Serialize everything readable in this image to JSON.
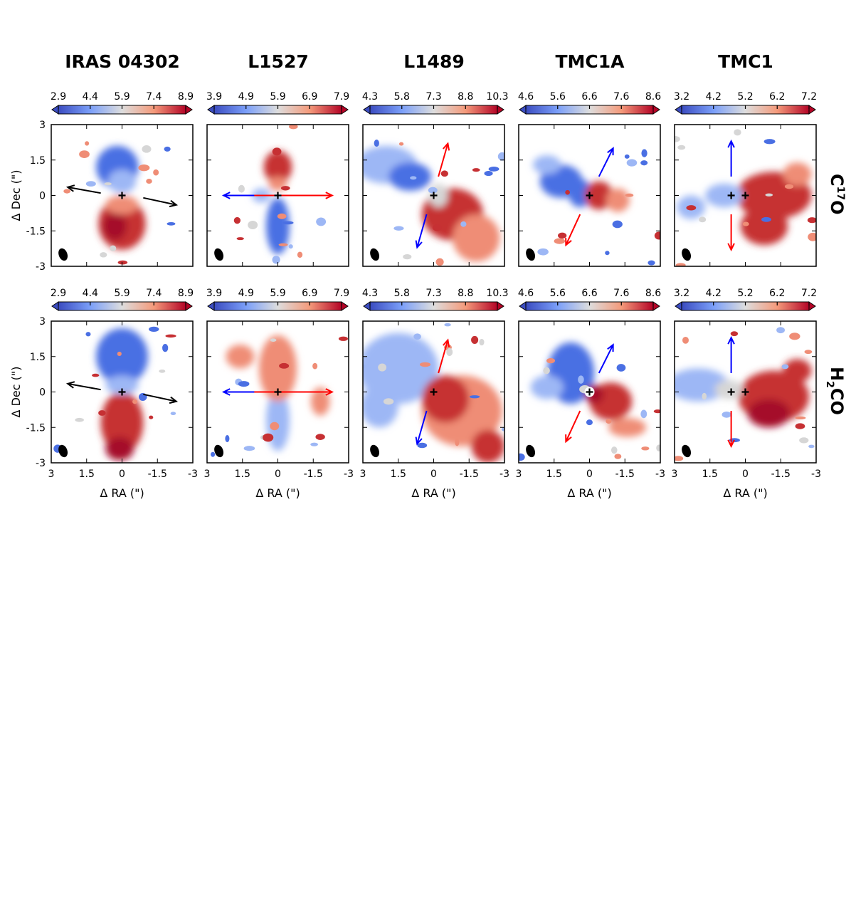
{
  "figure": {
    "columns": [
      "IRAS 04302",
      "L1527",
      "L1489",
      "TMC1A",
      "TMC1"
    ],
    "rows": [
      {
        "label_main": "C",
        "label_sup": "17",
        "label_end": "O"
      },
      {
        "label_main": "H",
        "label_sub": "2",
        "label_end": "CO"
      }
    ],
    "xlabel": "Δ RA (\")",
    "ylabel": "Δ Dec (\")",
    "colorscale": {
      "low": "#3b4cc0",
      "mid": "#dddddd",
      "high": "#b40426"
    }
  },
  "chart_data": [
    {
      "type": "heatmap",
      "source": "IRAS 04302",
      "tracer": "C17O",
      "colorbar_ticks": [
        "2.9",
        "4.4",
        "5.9",
        "7.4",
        "8.9"
      ],
      "colorbar_range": [
        2.9,
        8.9
      ],
      "xlim": [
        3,
        -3
      ],
      "ylim": [
        -3,
        3
      ],
      "xticks": [
        "3",
        "1.5",
        "0",
        "-1.5",
        "-3"
      ],
      "yticks": [
        "3",
        "1.5",
        "0",
        "-1.5",
        "-3"
      ],
      "blue_lobe": "north",
      "red_lobe": "south",
      "outflow_arrow_color": "black"
    },
    {
      "type": "heatmap",
      "source": "L1527",
      "tracer": "C17O",
      "colorbar_ticks": [
        "3.9",
        "4.9",
        "5.9",
        "6.9",
        "7.9"
      ],
      "colorbar_range": [
        3.9,
        7.9
      ],
      "xlim": [
        3,
        -3
      ],
      "ylim": [
        -3,
        3
      ],
      "blue_lobe": "south",
      "red_lobe": "north",
      "outflow_arrow_color": "blue/red"
    },
    {
      "type": "heatmap",
      "source": "L1489",
      "tracer": "C17O",
      "colorbar_ticks": [
        "4.3",
        "5.8",
        "7.3",
        "8.8",
        "10.3"
      ],
      "colorbar_range": [
        4.3,
        10.3
      ],
      "xlim": [
        3,
        -3
      ],
      "ylim": [
        -3,
        3
      ],
      "blue_lobe": "east",
      "red_lobe": "west",
      "outflow_arrow_color": "blue/red"
    },
    {
      "type": "heatmap",
      "source": "TMC1A",
      "tracer": "C17O",
      "colorbar_ticks": [
        "4.6",
        "5.6",
        "6.6",
        "7.6",
        "8.6"
      ],
      "colorbar_range": [
        4.6,
        8.6
      ],
      "xlim": [
        3,
        -3
      ],
      "ylim": [
        -3,
        3
      ],
      "blue_lobe": "east",
      "red_lobe": "west",
      "outflow_arrow_color": "blue/red"
    },
    {
      "type": "heatmap",
      "source": "TMC1",
      "tracer": "C17O",
      "colorbar_ticks": [
        "3.2",
        "4.2",
        "5.2",
        "6.2",
        "7.2"
      ],
      "colorbar_range": [
        3.2,
        7.2
      ],
      "xlim": [
        3,
        -3
      ],
      "ylim": [
        -3,
        3
      ],
      "blue_lobe": "east",
      "red_lobe": "west",
      "outflow_arrow_color": "blue/red"
    },
    {
      "type": "heatmap",
      "source": "IRAS 04302",
      "tracer": "H2CO",
      "colorbar_ticks": [
        "2.9",
        "4.4",
        "5.9",
        "7.4",
        "8.9"
      ],
      "colorbar_range": [
        2.9,
        8.9
      ],
      "xlim": [
        3,
        -3
      ],
      "ylim": [
        -3,
        3
      ]
    },
    {
      "type": "heatmap",
      "source": "L1527",
      "tracer": "H2CO",
      "colorbar_ticks": [
        "3.9",
        "4.9",
        "5.9",
        "6.9",
        "7.9"
      ],
      "colorbar_range": [
        3.9,
        7.9
      ],
      "xlim": [
        3,
        -3
      ],
      "ylim": [
        -3,
        3
      ]
    },
    {
      "type": "heatmap",
      "source": "L1489",
      "tracer": "H2CO",
      "colorbar_ticks": [
        "4.3",
        "5.8",
        "7.3",
        "8.8",
        "10.3"
      ],
      "colorbar_range": [
        4.3,
        10.3
      ],
      "xlim": [
        3,
        -3
      ],
      "ylim": [
        -3,
        3
      ]
    },
    {
      "type": "heatmap",
      "source": "TMC1A",
      "tracer": "H2CO",
      "colorbar_ticks": [
        "4.6",
        "5.6",
        "6.6",
        "7.6",
        "8.6"
      ],
      "colorbar_range": [
        4.6,
        8.6
      ],
      "xlim": [
        3,
        -3
      ],
      "ylim": [
        -3,
        3
      ]
    },
    {
      "type": "heatmap",
      "source": "TMC1",
      "tracer": "H2CO",
      "colorbar_ticks": [
        "3.2",
        "4.2",
        "5.2",
        "6.2",
        "7.2"
      ],
      "colorbar_range": [
        3.2,
        7.2
      ],
      "xlim": [
        3,
        -3
      ],
      "ylim": [
        -3,
        3
      ]
    }
  ],
  "axis_ticks": {
    "x": [
      "3",
      "1.5",
      "0",
      "-1.5",
      "-3"
    ],
    "y": [
      "3",
      "1.5",
      "0",
      "-1.5",
      "-3"
    ]
  }
}
